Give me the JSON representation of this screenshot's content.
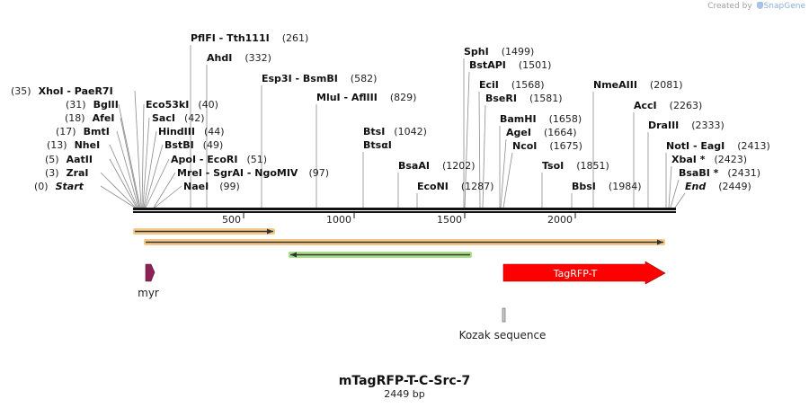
{
  "credit": {
    "prefix": "Created by",
    "brand": "SnapGene"
  },
  "map": {
    "name": "mTagRFP-T-C-Src-7",
    "length": "2449 bp",
    "ruler_ticks": [
      "500",
      "1000",
      "1500",
      "2000"
    ],
    "sites": [
      {
        "pos": "(0)",
        "name": "Start",
        "italic": true
      },
      {
        "pos": "(3)",
        "name": "ZraI"
      },
      {
        "pos": "(5)",
        "name": "AatII"
      },
      {
        "pos": "(13)",
        "name": "NheI"
      },
      {
        "pos": "(17)",
        "name": "BmtI"
      },
      {
        "pos": "(18)",
        "name": "AfeI"
      },
      {
        "pos": "(31)",
        "name": "BglII"
      },
      {
        "pos": "(35)",
        "name": "XhoI",
        "name2": "PaeR7I"
      },
      {
        "name": "Eco53kI",
        "pos": "(40)"
      },
      {
        "name": "SacI",
        "pos": "(42)"
      },
      {
        "name": "HindIII",
        "pos": "(44)"
      },
      {
        "name": "BstBI",
        "pos": "(49)"
      },
      {
        "name": "ApoI",
        "name2": "EcoRI",
        "pos": "(51)"
      },
      {
        "name": "MreI",
        "name2": "SgrAI",
        "name3": "NgoMIV",
        "pos": "(97)"
      },
      {
        "name": "NaeI",
        "pos": "(99)"
      },
      {
        "name": "PflFI",
        "name2": "Tth111I",
        "pos": "(261)"
      },
      {
        "name": "AhdI",
        "pos": "(332)"
      },
      {
        "name": "Esp3I",
        "name2": "BsmBI",
        "pos": "(582)"
      },
      {
        "name": "MluI",
        "name2": "AflIII",
        "pos": "(829)"
      },
      {
        "name": "BtsI",
        "pos": "(1042)"
      },
      {
        "name": "BtsαI"
      },
      {
        "name": "BsaAI",
        "pos": "(1202)"
      },
      {
        "name": "EcoNI",
        "pos": "(1287)"
      },
      {
        "name": "SphI",
        "pos": "(1499)"
      },
      {
        "name": "BstAPI",
        "pos": "(1501)"
      },
      {
        "name": "EciI",
        "pos": "(1568)"
      },
      {
        "name": "BseRI",
        "pos": "(1581)"
      },
      {
        "name": "BamHI",
        "pos": "(1658)"
      },
      {
        "name": "AgeI",
        "pos": "(1664)"
      },
      {
        "name": "NcoI",
        "pos": "(1675)"
      },
      {
        "name": "TsoI",
        "pos": "(1851)"
      },
      {
        "name": "BbsI",
        "pos": "(1984)"
      },
      {
        "name": "NmeAIII",
        "pos": "(2081)"
      },
      {
        "name": "AccI",
        "pos": "(2263)"
      },
      {
        "name": "DraIII",
        "pos": "(2333)"
      },
      {
        "name": "NotI",
        "name2": "EagI",
        "pos": "(2413)"
      },
      {
        "name": "XbaI *",
        "pos": "(2423)"
      },
      {
        "name": "BsaBI *",
        "pos": "(2431)"
      },
      {
        "name": "End",
        "pos": "(2449)",
        "italic": true
      }
    ],
    "features": [
      {
        "name": "myr",
        "color": "#8b2252",
        "direction": "forward"
      },
      {
        "name": "TagRFP-T",
        "color": "#ff0000",
        "direction": "forward"
      },
      {
        "name": "Kozak sequence",
        "color": "#999999"
      }
    ],
    "orf_colors": {
      "orange": "#f5a623",
      "green": "#5cb85c",
      "arrow": "#333333"
    }
  }
}
